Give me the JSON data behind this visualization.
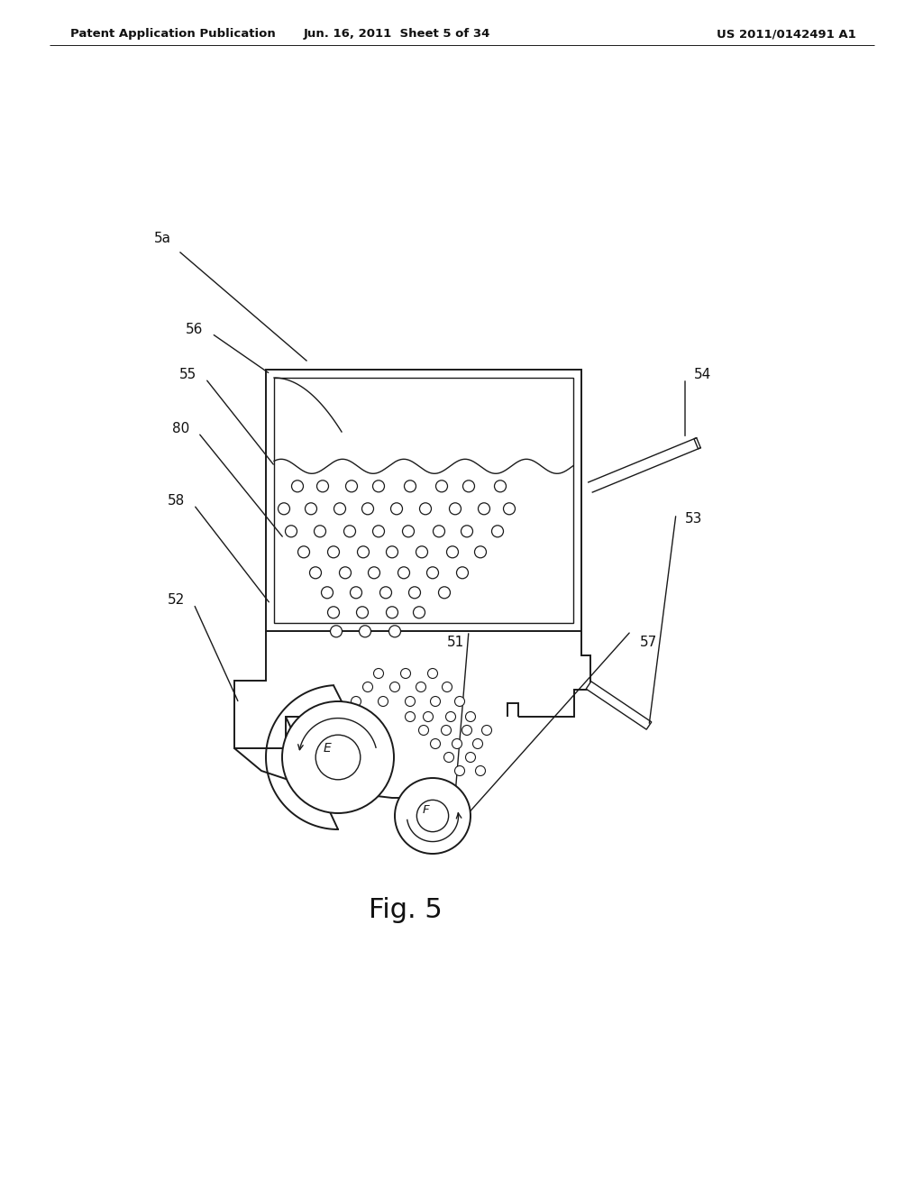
{
  "background_color": "#ffffff",
  "header_left": "Patent Application Publication",
  "header_mid": "Jun. 16, 2011  Sheet 5 of 34",
  "header_right": "US 2011/0142491 A1",
  "fig_label": "Fig. 5",
  "line_color": "#1a1a1a",
  "lw": 1.8,
  "lw_thin": 1.0,
  "lw_med": 1.4
}
